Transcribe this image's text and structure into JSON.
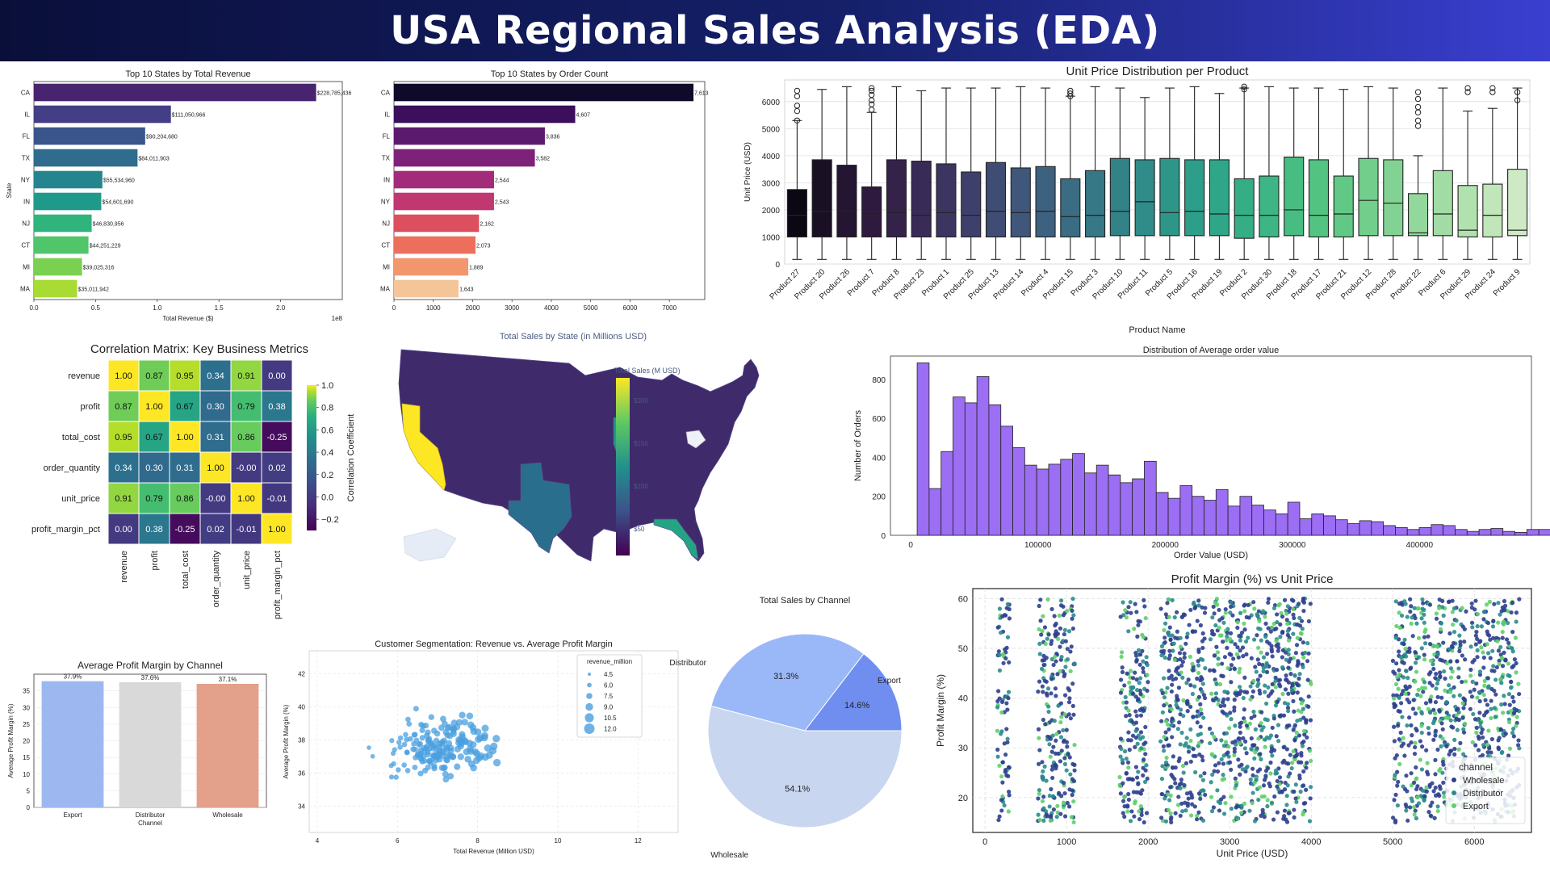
{
  "header": {
    "title": "USA Regional Sales Analysis (EDA)"
  },
  "chart_data": [
    {
      "id": "rev",
      "type": "bar",
      "orientation": "horizontal",
      "title": "Top 10 States by Total Revenue",
      "xlabel": "Total Revenue ($)",
      "ylabel": "State",
      "x_offset_label": "1e8",
      "categories": [
        "CA",
        "IL",
        "FL",
        "TX",
        "NY",
        "IN",
        "NJ",
        "CT",
        "MI",
        "MA"
      ],
      "values": [
        228785436,
        111050966,
        90204680,
        84011903,
        55534960,
        54601690,
        46830956,
        44251229,
        39025316,
        35011942
      ],
      "value_labels": [
        "$228,785,436",
        "$111,050,966",
        "$90,204,680",
        "$84,011,903",
        "$55,534,960",
        "$54,601,690",
        "$46,830,956",
        "$44,251,229",
        "$39,025,316",
        "$35,011,942"
      ],
      "xlim": [
        0,
        250000000
      ],
      "xticks": [
        0,
        50000000,
        100000000,
        150000000,
        200000000
      ],
      "xtick_labels": [
        "0.0",
        "0.5",
        "1.0",
        "1.5",
        "2.0"
      ],
      "colors": [
        "#48236f",
        "#433e85",
        "#3a548c",
        "#2f6c8e",
        "#25858e",
        "#1f9a8a",
        "#2fb47c",
        "#51c56a",
        "#7ad151",
        "#a8db34"
      ]
    },
    {
      "id": "cnt",
      "type": "bar",
      "orientation": "horizontal",
      "title": "Top 10 States by Order Count",
      "xlabel": "",
      "ylabel": "",
      "categories": [
        "CA",
        "IL",
        "FL",
        "TX",
        "IN",
        "NY",
        "NJ",
        "CT",
        "MI",
        "MA"
      ],
      "values": [
        7613,
        4607,
        3836,
        3582,
        2544,
        2543,
        2162,
        2073,
        1889,
        1643
      ],
      "value_labels": [
        "7,613",
        "4,607",
        "3,836",
        "3,582",
        "2,544",
        "2,543",
        "2,162",
        "2,073",
        "1,889",
        "1,643"
      ],
      "xlim": [
        0,
        7900
      ],
      "xticks": [
        0,
        1000,
        2000,
        3000,
        4000,
        5000,
        6000,
        7000
      ],
      "xtick_labels": [
        "0",
        "1000",
        "2000",
        "3000",
        "4000",
        "5000",
        "6000",
        "7000"
      ],
      "colors": [
        "#0f0a2a",
        "#3b0f5c",
        "#5c1a6e",
        "#7e2179",
        "#a22b7a",
        "#c1376f",
        "#dc4f5f",
        "#ec6f5c",
        "#f2966e",
        "#f5c59a"
      ]
    },
    {
      "id": "box",
      "type": "box",
      "title": "Unit Price Distribution per Product",
      "xlabel": "Product Name",
      "ylabel": "Unit Price (USD)",
      "ylim": [
        0,
        6800
      ],
      "yticks": [
        0,
        1000,
        2000,
        3000,
        4000,
        5000,
        6000
      ],
      "categories": [
        "Product 27",
        "Product 20",
        "Product 26",
        "Product 7",
        "Product 8",
        "Product 23",
        "Product 1",
        "Product 25",
        "Product 13",
        "Product 14",
        "Product 4",
        "Product 15",
        "Product 3",
        "Product 10",
        "Product 11",
        "Product 5",
        "Product 16",
        "Product 19",
        "Product 2",
        "Product 30",
        "Product 18",
        "Product 17",
        "Product 21",
        "Product 12",
        "Product 28",
        "Product 22",
        "Product 6",
        "Product 29",
        "Product 24",
        "Product 9"
      ],
      "q1": [
        1000,
        1000,
        1000,
        1000,
        1000,
        1000,
        1000,
        1000,
        1000,
        1000,
        1000,
        1000,
        1000,
        1050,
        1050,
        1050,
        1050,
        1050,
        950,
        1000,
        1050,
        1000,
        1000,
        1050,
        1050,
        1050,
        1050,
        1000,
        1000,
        1050
      ],
      "median": [
        1800,
        1950,
        1950,
        1850,
        1900,
        1800,
        1900,
        1800,
        1950,
        1900,
        1950,
        1750,
        1800,
        1950,
        2300,
        1900,
        1950,
        1850,
        1800,
        1800,
        2000,
        1800,
        1850,
        2350,
        2250,
        1150,
        1850,
        1250,
        1800,
        1250
      ],
      "q3": [
        2750,
        3850,
        3650,
        2850,
        3850,
        3800,
        3700,
        3400,
        3750,
        3550,
        3600,
        3150,
        3450,
        3900,
        3850,
        3900,
        3850,
        3850,
        3150,
        3250,
        3950,
        3850,
        3250,
        3900,
        3850,
        2600,
        3450,
        2900,
        2950,
        3500
      ],
      "whisker_low": [
        170,
        170,
        170,
        170,
        170,
        170,
        170,
        170,
        170,
        170,
        170,
        170,
        170,
        170,
        170,
        170,
        170,
        170,
        170,
        170,
        170,
        170,
        170,
        170,
        170,
        170,
        170,
        170,
        170,
        170
      ],
      "whisker_high": [
        5300,
        6450,
        6550,
        5600,
        6550,
        6400,
        6500,
        6500,
        6500,
        6550,
        6500,
        6200,
        6550,
        6500,
        6150,
        6500,
        6550,
        6300,
        6500,
        6550,
        6500,
        6500,
        6450,
        6550,
        6500,
        4000,
        6500,
        5650,
        5750,
        6500
      ],
      "outliers": [
        [
          5300,
          5650,
          5850,
          6200,
          6400
        ],
        [],
        [],
        [
          5700,
          5900,
          6050,
          6250,
          6400,
          6500
        ],
        [],
        [],
        [],
        [],
        [],
        [],
        [],
        [
          6200,
          6300,
          6400
        ],
        [],
        [],
        [],
        [],
        [],
        [],
        [
          6450,
          6550
        ],
        [],
        [],
        [],
        [],
        [],
        [],
        [
          5100,
          5300,
          5600,
          5800,
          6100,
          6350
        ],
        [],
        [
          6350,
          6500
        ],
        [
          6350,
          6500
        ],
        [
          6050,
          6350
        ]
      ],
      "colors": [
        "#0b0814",
        "#1a1024",
        "#241532",
        "#2e1a3f",
        "#34224b",
        "#392b57",
        "#3c3562",
        "#3e406b",
        "#3f4c73",
        "#3f577a",
        "#3d6280",
        "#3a6d84",
        "#377886",
        "#338288",
        "#308c89",
        "#2e9689",
        "#2d9e89",
        "#2fa688",
        "#35ae86",
        "#3db584",
        "#47bd82",
        "#53c382",
        "#61c985",
        "#71ce8b",
        "#82d393",
        "#92d89c",
        "#a2dca5",
        "#b1e1af",
        "#c0e6ba",
        "#cdeac5"
      ]
    },
    {
      "id": "corr",
      "type": "heatmap",
      "title": "Correlation Matrix: Key Business Metrics",
      "rows": [
        "revenue",
        "profit",
        "total_cost",
        "order_quantity",
        "unit_price",
        "profit_margin_pct"
      ],
      "cols": [
        "revenue",
        "profit",
        "total_cost",
        "order_quantity",
        "unit_price",
        "profit_margin_pct"
      ],
      "matrix": [
        [
          1.0,
          0.87,
          0.95,
          0.34,
          0.91,
          0.0
        ],
        [
          0.87,
          1.0,
          0.67,
          0.3,
          0.79,
          0.38
        ],
        [
          0.95,
          0.67,
          1.0,
          0.31,
          0.86,
          -0.25
        ],
        [
          0.34,
          0.3,
          0.31,
          1.0,
          -0.0,
          0.02
        ],
        [
          0.91,
          0.79,
          0.86,
          -0.0,
          1.0,
          -0.01
        ],
        [
          0.0,
          0.38,
          -0.25,
          0.02,
          -0.01,
          1.0
        ]
      ],
      "cell_labels": [
        [
          "1.00",
          "0.87",
          "0.95",
          "0.34",
          "0.91",
          "0.00"
        ],
        [
          "0.87",
          "1.00",
          "0.67",
          "0.30",
          "0.79",
          "0.38"
        ],
        [
          "0.95",
          "0.67",
          "1.00",
          "0.31",
          "0.86",
          "-0.25"
        ],
        [
          "0.34",
          "0.30",
          "0.31",
          "1.00",
          "-0.00",
          "0.02"
        ],
        [
          "0.91",
          "0.79",
          "0.86",
          "-0.00",
          "1.00",
          "-0.01"
        ],
        [
          "0.00",
          "0.38",
          "-0.25",
          "0.02",
          "-0.01",
          "1.00"
        ]
      ],
      "colorbar_label": "Correlation Coefficient",
      "colorbar_ticks": [
        "1.0",
        "0.8",
        "0.6",
        "0.4",
        "0.2",
        "0.0",
        "−0.2"
      ],
      "vlim": [
        -0.3,
        1.0
      ]
    },
    {
      "id": "map",
      "type": "choropleth",
      "title": "Total Sales by State (in Millions USD)",
      "colorbar_title": "Total Sales (M USD)",
      "colorbar_ticks": [
        "$200",
        "$150",
        "$100",
        "$50"
      ],
      "highlighted_states": [
        "CA",
        "TX",
        "IL",
        "FL"
      ]
    },
    {
      "id": "hist",
      "type": "histogram",
      "title": "Distribution of Average order value",
      "xlabel": "Order Value (USD)",
      "ylabel": "Number of Orders",
      "xlim": [
        -16000,
        488000
      ],
      "ylim": [
        0,
        920
      ],
      "xticks": [
        0,
        100000,
        200000,
        300000,
        400000
      ],
      "yticks": [
        0,
        200,
        400,
        600,
        800
      ],
      "bin_start": 5000,
      "bin_width": 9400,
      "counts": [
        885,
        240,
        430,
        710,
        680,
        815,
        670,
        560,
        450,
        360,
        340,
        365,
        390,
        420,
        320,
        360,
        310,
        270,
        290,
        380,
        220,
        190,
        255,
        200,
        180,
        235,
        150,
        200,
        155,
        130,
        110,
        170,
        85,
        110,
        100,
        80,
        60,
        75,
        70,
        50,
        40,
        30,
        40,
        55,
        50,
        30,
        20,
        30,
        35,
        20,
        15,
        30,
        30,
        20,
        15,
        10
      ],
      "color": "#9b6ef3"
    },
    {
      "id": "channel_margin",
      "type": "bar",
      "title": "Average Profit Margin by Channel",
      "xlabel": "Channel",
      "ylabel": "Average Profit Margin (%)",
      "categories": [
        "Export",
        "Distributor",
        "Wholesale"
      ],
      "values": [
        37.9,
        37.6,
        37.1
      ],
      "value_labels": [
        "37.9%",
        "37.6%",
        "37.1%"
      ],
      "ylim": [
        0,
        40
      ],
      "yticks": [
        0,
        5,
        10,
        15,
        20,
        25,
        30,
        35
      ],
      "colors": [
        "#9db8f0",
        "#d9d9d9",
        "#e3a08a"
      ]
    },
    {
      "id": "seg",
      "type": "scatter",
      "title": "Customer Segmentation: Revenue vs. Average Profit Margin",
      "xlabel": "Total Revenue (Million USD)",
      "ylabel": "Average Profit Margin (%)",
      "xlim": [
        3.8,
        13.0
      ],
      "ylim": [
        32.4,
        43.4
      ],
      "xticks": [
        4,
        6,
        8,
        10,
        12
      ],
      "yticks": [
        34,
        36,
        38,
        40,
        42
      ],
      "legend_title": "revenue_million",
      "legend_items": [
        "4.5",
        "6.0",
        "7.5",
        "9.0",
        "10.5",
        "12.0"
      ],
      "color": "#4a9fdf",
      "point_count": 175
    },
    {
      "id": "pie",
      "type": "pie",
      "title": "Total Sales by Channel",
      "labels": [
        "Wholesale",
        "Distributor",
        "Export"
      ],
      "values": [
        54.1,
        31.3,
        14.6
      ],
      "value_labels": [
        "54.1%",
        "31.3%",
        "14.6%"
      ],
      "colors": [
        "#c8d6f0",
        "#9ab8f8",
        "#6f8ef0"
      ]
    },
    {
      "id": "pm",
      "type": "scatter",
      "title": "Profit Margin (%) vs Unit Price",
      "xlabel": "Unit Price (USD)",
      "ylabel": "Profit Margin (%)",
      "xlim": [
        -150,
        6700
      ],
      "ylim": [
        13,
        62
      ],
      "xticks": [
        0,
        1000,
        2000,
        3000,
        4000,
        5000,
        6000
      ],
      "yticks": [
        20,
        30,
        40,
        50,
        60
      ],
      "price_bands": [
        [
          150,
          300
        ],
        [
          650,
          1100
        ],
        [
          1650,
          2000
        ],
        [
          2150,
          2700
        ],
        [
          2750,
          4000
        ],
        [
          5000,
          5900
        ],
        [
          5950,
          6550
        ]
      ],
      "legend_title": "channel",
      "legend_items": [
        "Wholesale",
        "Distributor",
        "Export"
      ],
      "colors": [
        "#2d3f8e",
        "#2a8c8c",
        "#5fcf6a"
      ]
    }
  ]
}
